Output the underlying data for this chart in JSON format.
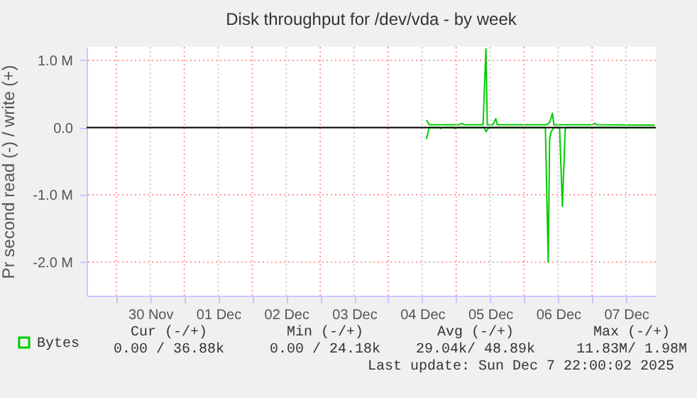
{
  "chart_data": {
    "type": "line",
    "title": "Disk throughput for /dev/vda - by week",
    "ylabel": "Pr second read (-) / write (+)",
    "xlim": [
      "2025-11-29T13:30",
      "2025-12-07T22:30"
    ],
    "xticks": [
      {
        "value": "2025-11-30T00:00",
        "label": null
      },
      {
        "value": "2025-11-30T12:00",
        "label": "30 Nov"
      },
      {
        "value": "2025-12-01T00:00",
        "label": null
      },
      {
        "value": "2025-12-01T12:00",
        "label": "01 Dec"
      },
      {
        "value": "2025-12-02T00:00",
        "label": null
      },
      {
        "value": "2025-12-02T12:00",
        "label": "02 Dec"
      },
      {
        "value": "2025-12-03T00:00",
        "label": null
      },
      {
        "value": "2025-12-03T12:00",
        "label": "03 Dec"
      },
      {
        "value": "2025-12-04T00:00",
        "label": null
      },
      {
        "value": "2025-12-04T12:00",
        "label": "04 Dec"
      },
      {
        "value": "2025-12-05T00:00",
        "label": null
      },
      {
        "value": "2025-12-05T12:00",
        "label": "05 Dec"
      },
      {
        "value": "2025-12-06T00:00",
        "label": null
      },
      {
        "value": "2025-12-06T12:00",
        "label": "06 Dec"
      },
      {
        "value": "2025-12-07T00:00",
        "label": null
      },
      {
        "value": "2025-12-07T12:00",
        "label": "07 Dec"
      }
    ],
    "ylim": [
      -2500000,
      1200000
    ],
    "yticks": [
      {
        "value": 1000000,
        "label": "1.0 M"
      },
      {
        "value": 0,
        "label": "0.0"
      },
      {
        "value": -1000000,
        "label": "-1.0 M"
      },
      {
        "value": -2000000,
        "label": "-2.0 M"
      }
    ],
    "grid": true,
    "legend": "bottom left",
    "ref_lines": [
      {
        "axis": "y",
        "value": 0,
        "color": "#000000"
      }
    ],
    "series": [
      {
        "name": "Bytes",
        "color": "#00cc00",
        "x": [
          "2025-12-04T13:30",
          "2025-12-04T14:30",
          "2025-12-05T01:00",
          "2025-12-05T02:00",
          "2025-12-05T03:00",
          "2025-12-05T09:30",
          "2025-12-05T10:30",
          "2025-12-05T11:00",
          "2025-12-05T13:00",
          "2025-12-05T14:00",
          "2025-12-05T14:30",
          "2025-12-06T08:00",
          "2025-12-06T09:00",
          "2025-12-06T10:00",
          "2025-12-06T10:30",
          "2025-12-07T00:00",
          "2025-12-07T01:00",
          "2025-12-07T01:30",
          "2025-12-07T22:00"
        ],
        "values": [
          113000,
          42000,
          42000,
          63000,
          42000,
          42000,
          1170000,
          42000,
          42000,
          134000,
          42000,
          42000,
          78000,
          211000,
          42000,
          42000,
          63000,
          42000,
          37000
        ]
      },
      {
        "color": "#00cc00",
        "x": [
          "2025-12-04T13:30",
          "2025-12-04T14:30",
          "2025-12-04T18:00",
          "2025-12-04T18:30",
          "2025-12-04T19:00",
          "2025-12-04T23:00",
          "2025-12-04T23:30",
          "2025-12-05T00:00",
          "2025-12-05T10:00",
          "2025-12-05T10:30",
          "2025-12-05T11:30",
          "2025-12-06T07:30",
          "2025-12-06T08:30",
          "2025-12-06T09:00",
          "2025-12-06T09:30",
          "2025-12-06T10:30",
          "2025-12-06T12:30",
          "2025-12-06T13:30",
          "2025-12-06T14:30",
          "2025-12-06T15:00",
          "2025-12-07T22:00"
        ],
        "values": [
          -169000,
          0,
          0,
          -14000,
          0,
          0,
          -14000,
          0,
          0,
          -63000,
          0,
          0,
          -2000000,
          -169000,
          -63000,
          0,
          0,
          -1170000,
          -28000,
          0,
          0
        ]
      }
    ],
    "annotations": [
      "Cur (-/+)",
      "0.00 / 36.88k",
      "Min (-/+)",
      "0.00 / 24.18k",
      "Avg (-/+)",
      "29.04k/ 48.89k",
      "Max (-/+)",
      "11.83M/  1.98M",
      "Last update: Sun Dec  7 22:00:02 2025"
    ]
  }
}
